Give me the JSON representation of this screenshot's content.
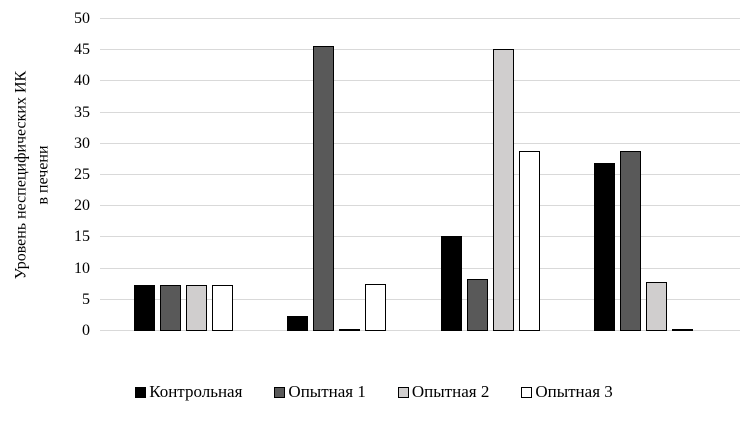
{
  "chart_data": {
    "type": "bar",
    "title": "",
    "ylabel_lines": [
      "Уровень неспецифических ИК",
      "в печени"
    ],
    "xlabel": "",
    "categories": [
      "",
      "",
      "",
      ""
    ],
    "series": [
      {
        "name": "Контрольная",
        "color": "#000000",
        "values": [
          7.4,
          2.4,
          15.3,
          27.0
        ]
      },
      {
        "name": "Опытная 1",
        "color": "#595959",
        "values": [
          7.4,
          45.6,
          8.3,
          28.8
        ]
      },
      {
        "name": "Опытная 2",
        "color": "#d0cece",
        "values": [
          7.4,
          0.3,
          45.2,
          7.8
        ]
      },
      {
        "name": "Опытная 3",
        "color": "#ffffff",
        "values": [
          7.4,
          7.5,
          28.8,
          0.3
        ]
      }
    ],
    "ylim": [
      0,
      50
    ],
    "yticks": [
      0,
      5,
      10,
      15,
      20,
      25,
      30,
      35,
      40,
      45,
      50
    ],
    "grid": true,
    "gridline_color": "#d9d9d9",
    "bar_border_color": "#000000",
    "legend_position": "bottom"
  }
}
